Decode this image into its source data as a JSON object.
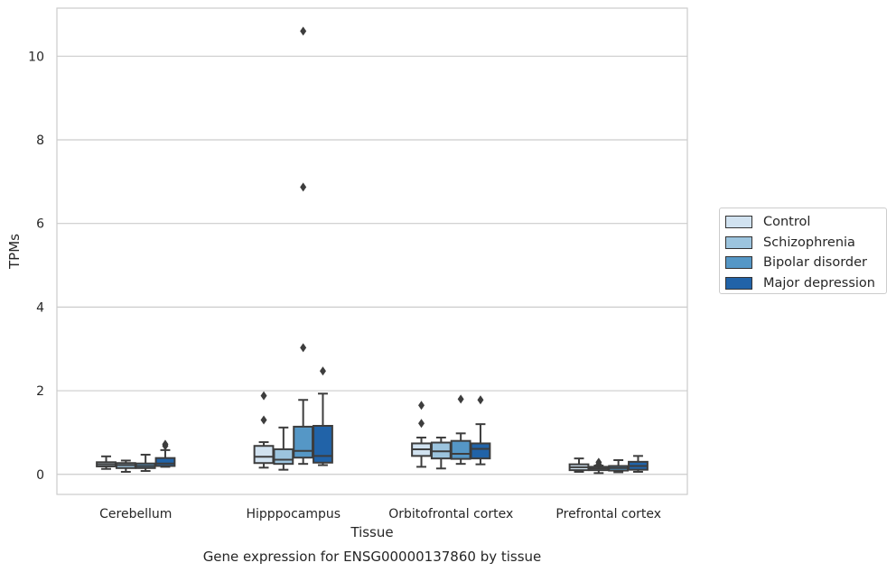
{
  "chart_data": {
    "type": "box",
    "title": "Gene expression for ENSG00000137860 by tissue",
    "xlabel": "Tissue",
    "ylabel": "TPMs",
    "ylim": [
      -0.48,
      11.15
    ],
    "yticks": [
      0,
      2,
      4,
      6,
      8,
      10
    ],
    "grid": true,
    "legend_position": "right",
    "categories": [
      "Cerebellum",
      "Hipppocampus",
      "Orbitofrontal cortex",
      "Prefrontal cortex"
    ],
    "series": [
      {
        "name": "Control",
        "color": "#d1e2f0",
        "boxes": [
          {
            "whislo": 0.13,
            "q1": 0.19,
            "med": 0.24,
            "q3": 0.29,
            "whishi": 0.43,
            "fliers": []
          },
          {
            "whislo": 0.16,
            "q1": 0.27,
            "med": 0.42,
            "q3": 0.68,
            "whishi": 0.77,
            "fliers": [
              1.3,
              1.88
            ]
          },
          {
            "whislo": 0.18,
            "q1": 0.44,
            "med": 0.6,
            "q3": 0.74,
            "whishi": 0.88,
            "fliers": [
              1.22,
              1.65
            ]
          },
          {
            "whislo": 0.06,
            "q1": 0.1,
            "med": 0.17,
            "q3": 0.24,
            "whishi": 0.38,
            "fliers": []
          }
        ]
      },
      {
        "name": "Schizophrenia",
        "color": "#9cc4de",
        "boxes": [
          {
            "whislo": 0.06,
            "q1": 0.15,
            "med": 0.22,
            "q3": 0.27,
            "whishi": 0.33,
            "fliers": []
          },
          {
            "whislo": 0.11,
            "q1": 0.25,
            "med": 0.35,
            "q3": 0.6,
            "whishi": 1.12,
            "fliers": []
          },
          {
            "whislo": 0.14,
            "q1": 0.38,
            "med": 0.55,
            "q3": 0.76,
            "whishi": 0.88,
            "fliers": []
          },
          {
            "whislo": 0.03,
            "q1": 0.1,
            "med": 0.14,
            "q3": 0.18,
            "whishi": 0.21,
            "fliers": [
              0.24,
              0.29
            ]
          }
        ]
      },
      {
        "name": "Bipolar disorder",
        "color": "#5597c6",
        "boxes": [
          {
            "whislo": 0.08,
            "q1": 0.15,
            "med": 0.2,
            "q3": 0.26,
            "whishi": 0.47,
            "fliers": []
          },
          {
            "whislo": 0.25,
            "q1": 0.4,
            "med": 0.56,
            "q3": 1.14,
            "whishi": 1.78,
            "fliers": [
              3.03,
              6.87,
              10.6
            ]
          },
          {
            "whislo": 0.25,
            "q1": 0.37,
            "med": 0.49,
            "q3": 0.8,
            "whishi": 0.98,
            "fliers": [
              1.8
            ]
          },
          {
            "whislo": 0.05,
            "q1": 0.09,
            "med": 0.15,
            "q3": 0.2,
            "whishi": 0.34,
            "fliers": []
          }
        ]
      },
      {
        "name": "Major depression",
        "color": "#2163a8",
        "boxes": [
          {
            "whislo": 0.18,
            "q1": 0.2,
            "med": 0.26,
            "q3": 0.39,
            "whishi": 0.58,
            "fliers": [
              0.68,
              0.72
            ]
          },
          {
            "whislo": 0.22,
            "q1": 0.28,
            "med": 0.44,
            "q3": 1.16,
            "whishi": 1.93,
            "fliers": [
              2.47
            ]
          },
          {
            "whislo": 0.24,
            "q1": 0.38,
            "med": 0.61,
            "q3": 0.74,
            "whishi": 1.2,
            "fliers": [
              1.78
            ]
          },
          {
            "whislo": 0.06,
            "q1": 0.11,
            "med": 0.2,
            "q3": 0.3,
            "whishi": 0.44,
            "fliers": []
          }
        ]
      }
    ]
  }
}
